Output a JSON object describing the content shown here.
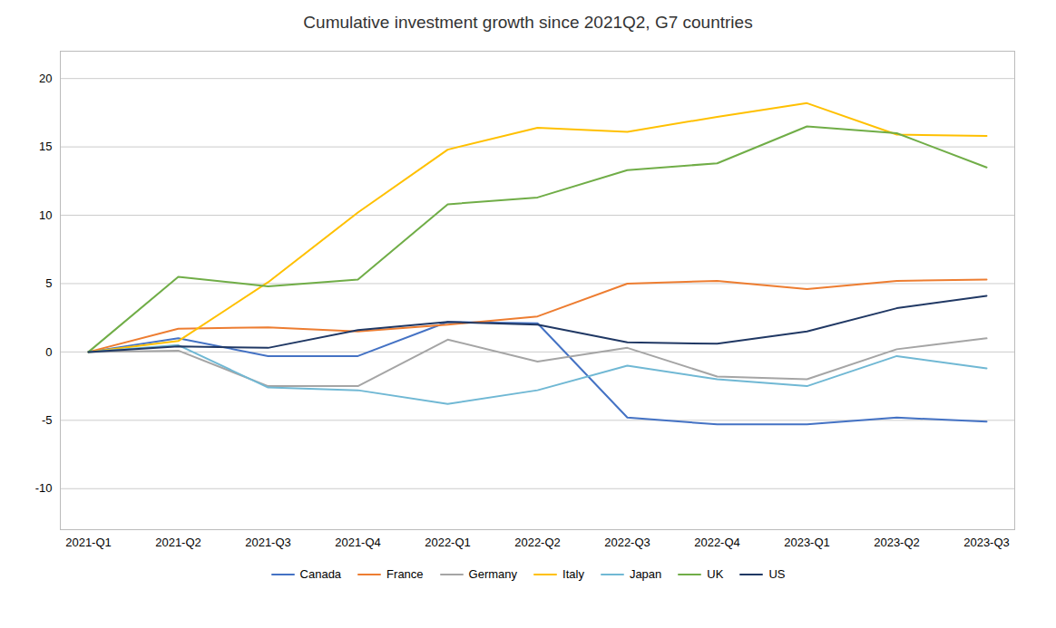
{
  "chart_data": {
    "type": "line",
    "title": "Cumulative investment growth since 2021Q2, G7 countries",
    "categories": [
      "2021-Q1",
      "2021-Q2",
      "2021-Q3",
      "2021-Q4",
      "2022-Q1",
      "2022-Q2",
      "2022-Q3",
      "2022-Q4",
      "2023-Q1",
      "2023-Q2",
      "2023-Q3"
    ],
    "series": [
      {
        "name": "Canada",
        "color": "#4472C4",
        "values": [
          0,
          1.0,
          -0.3,
          -0.3,
          2.2,
          2.1,
          -4.8,
          -5.3,
          -5.3,
          -4.8,
          -5.1
        ]
      },
      {
        "name": "France",
        "color": "#ED7D31",
        "values": [
          0,
          1.7,
          1.8,
          1.5,
          2.0,
          2.6,
          5.0,
          5.2,
          4.6,
          5.2,
          5.3
        ]
      },
      {
        "name": "Germany",
        "color": "#A5A5A5",
        "values": [
          0,
          0.1,
          -2.5,
          -2.5,
          0.9,
          -0.7,
          0.3,
          -1.8,
          -2.0,
          0.2,
          1.0
        ]
      },
      {
        "name": "Italy",
        "color": "#FFC000",
        "values": [
          0,
          0.8,
          5.1,
          10.2,
          14.8,
          16.4,
          16.1,
          17.2,
          18.2,
          15.9,
          15.8
        ]
      },
      {
        "name": "Japan",
        "color": "#70B8D4",
        "values": [
          0,
          0.5,
          -2.6,
          -2.8,
          -3.8,
          -2.8,
          -1.0,
          -2.0,
          -2.5,
          -0.3,
          -1.2
        ]
      },
      {
        "name": "UK",
        "color": "#70AD47",
        "values": [
          0,
          5.5,
          4.8,
          5.3,
          10.8,
          11.3,
          13.3,
          13.8,
          16.5,
          16.0,
          13.5
        ]
      },
      {
        "name": "US",
        "color": "#203864",
        "values": [
          0,
          0.4,
          0.3,
          1.6,
          2.2,
          2.0,
          0.7,
          0.6,
          1.5,
          3.2,
          4.1
        ]
      }
    ],
    "ylim": [
      -13,
      22
    ],
    "yticks": [
      -10,
      -5,
      0,
      5,
      10,
      15,
      20
    ],
    "grid": true,
    "legend": "bottom"
  }
}
